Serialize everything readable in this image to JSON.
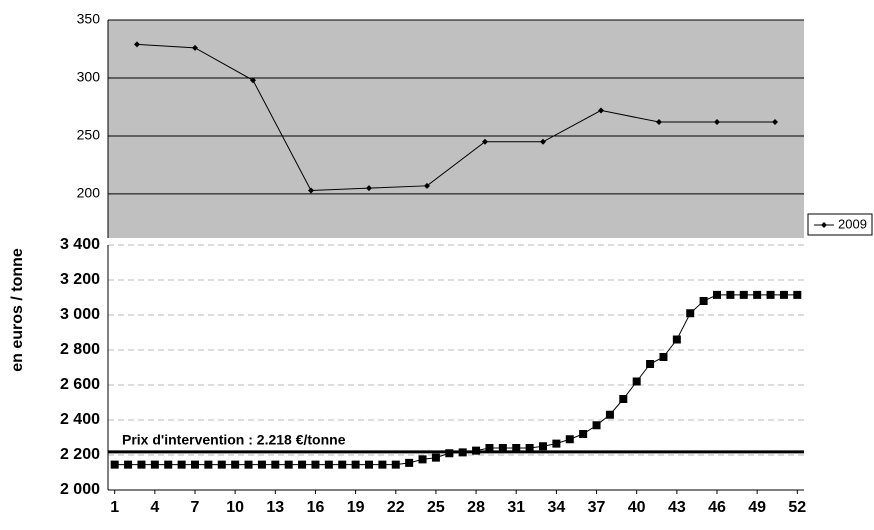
{
  "chart_data": [
    {
      "type": "line",
      "categories": [
        null,
        null,
        null,
        null,
        null,
        null,
        null,
        null,
        null,
        null,
        null,
        null
      ],
      "series": [
        {
          "name": "2009",
          "color": "#000000",
          "values": [
            329,
            326,
            298,
            203,
            205,
            207,
            245,
            245,
            272,
            262,
            262,
            262
          ]
        }
      ],
      "ylim": [
        162,
        350
      ],
      "yticks": [
        200,
        250,
        300,
        350
      ],
      "grid": true,
      "background": "#c0c0c0",
      "legend": "right"
    },
    {
      "type": "line",
      "y_label": "en euros / tonne",
      "categories": [
        1,
        null,
        null,
        4,
        null,
        null,
        7,
        null,
        null,
        10,
        null,
        null,
        13,
        null,
        null,
        16,
        null,
        null,
        19,
        null,
        null,
        22,
        null,
        null,
        25,
        null,
        null,
        28,
        null,
        null,
        31,
        null,
        null,
        34,
        null,
        null,
        37,
        null,
        null,
        40,
        null,
        null,
        43,
        null,
        null,
        46,
        null,
        null,
        49,
        null,
        null,
        52
      ],
      "series": [
        {
          "color": "#000000",
          "values": [
            2145,
            2145,
            2145,
            2145,
            2145,
            2145,
            2145,
            2145,
            2145,
            2145,
            2145,
            2145,
            2145,
            2145,
            2145,
            2145,
            2145,
            2145,
            2145,
            2145,
            2145,
            2145,
            2155,
            2175,
            2185,
            2210,
            2215,
            2225,
            2240,
            2240,
            2240,
            2240,
            2250,
            2265,
            2290,
            2320,
            2370,
            2430,
            2520,
            2620,
            2720,
            2760,
            2860,
            3010,
            3080,
            3115,
            3115,
            3115,
            3115,
            3115,
            3115,
            3115
          ]
        }
      ],
      "reference_line": {
        "value": 2218,
        "label": "Prix d'intervention : 2.218 €/tonne"
      },
      "ylim": [
        2000,
        3400
      ],
      "yticks": [
        {
          "value": 2000,
          "label": "2 000"
        },
        {
          "value": 2200,
          "label": "2 200"
        },
        {
          "value": 2400,
          "label": "2 400"
        },
        {
          "value": 2600,
          "label": "2 600"
        },
        {
          "value": 2800,
          "label": "2 800"
        },
        {
          "value": 3000,
          "label": "3 000"
        },
        {
          "value": 3200,
          "label": "3 200"
        },
        {
          "value": 3400,
          "label": "3 400"
        }
      ],
      "grid": true
    }
  ]
}
